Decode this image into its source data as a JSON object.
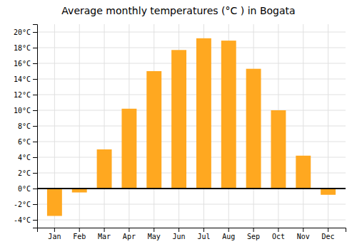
{
  "chart_data": {
    "type": "bar",
    "title": "Average monthly temperatures (°C ) in Bogata",
    "categories": [
      "Jan",
      "Feb",
      "Mar",
      "Apr",
      "May",
      "Jun",
      "Jul",
      "Aug",
      "Sep",
      "Oct",
      "Nov",
      "Dec"
    ],
    "values": [
      -3.5,
      -0.5,
      5.0,
      10.2,
      15.0,
      17.7,
      19.2,
      18.9,
      15.3,
      10.0,
      4.2,
      -0.8
    ],
    "color": "#FFA820",
    "ylim": [
      -5,
      21
    ],
    "yticks": [
      {
        "value": -4,
        "label": "-4°C"
      },
      {
        "value": -2,
        "label": "-2°C"
      },
      {
        "value": 0,
        "label": "0°C"
      },
      {
        "value": 2,
        "label": "2°C"
      },
      {
        "value": 4,
        "label": "4°C"
      },
      {
        "value": 6,
        "label": "6°C"
      },
      {
        "value": 8,
        "label": "8°C"
      },
      {
        "value": 10,
        "label": "10°C"
      },
      {
        "value": 12,
        "label": "12°C"
      },
      {
        "value": 14,
        "label": "14°C"
      },
      {
        "value": 16,
        "label": "16°C"
      },
      {
        "value": 18,
        "label": "18°C"
      },
      {
        "value": 20,
        "label": "20°C"
      }
    ],
    "grid": true
  }
}
